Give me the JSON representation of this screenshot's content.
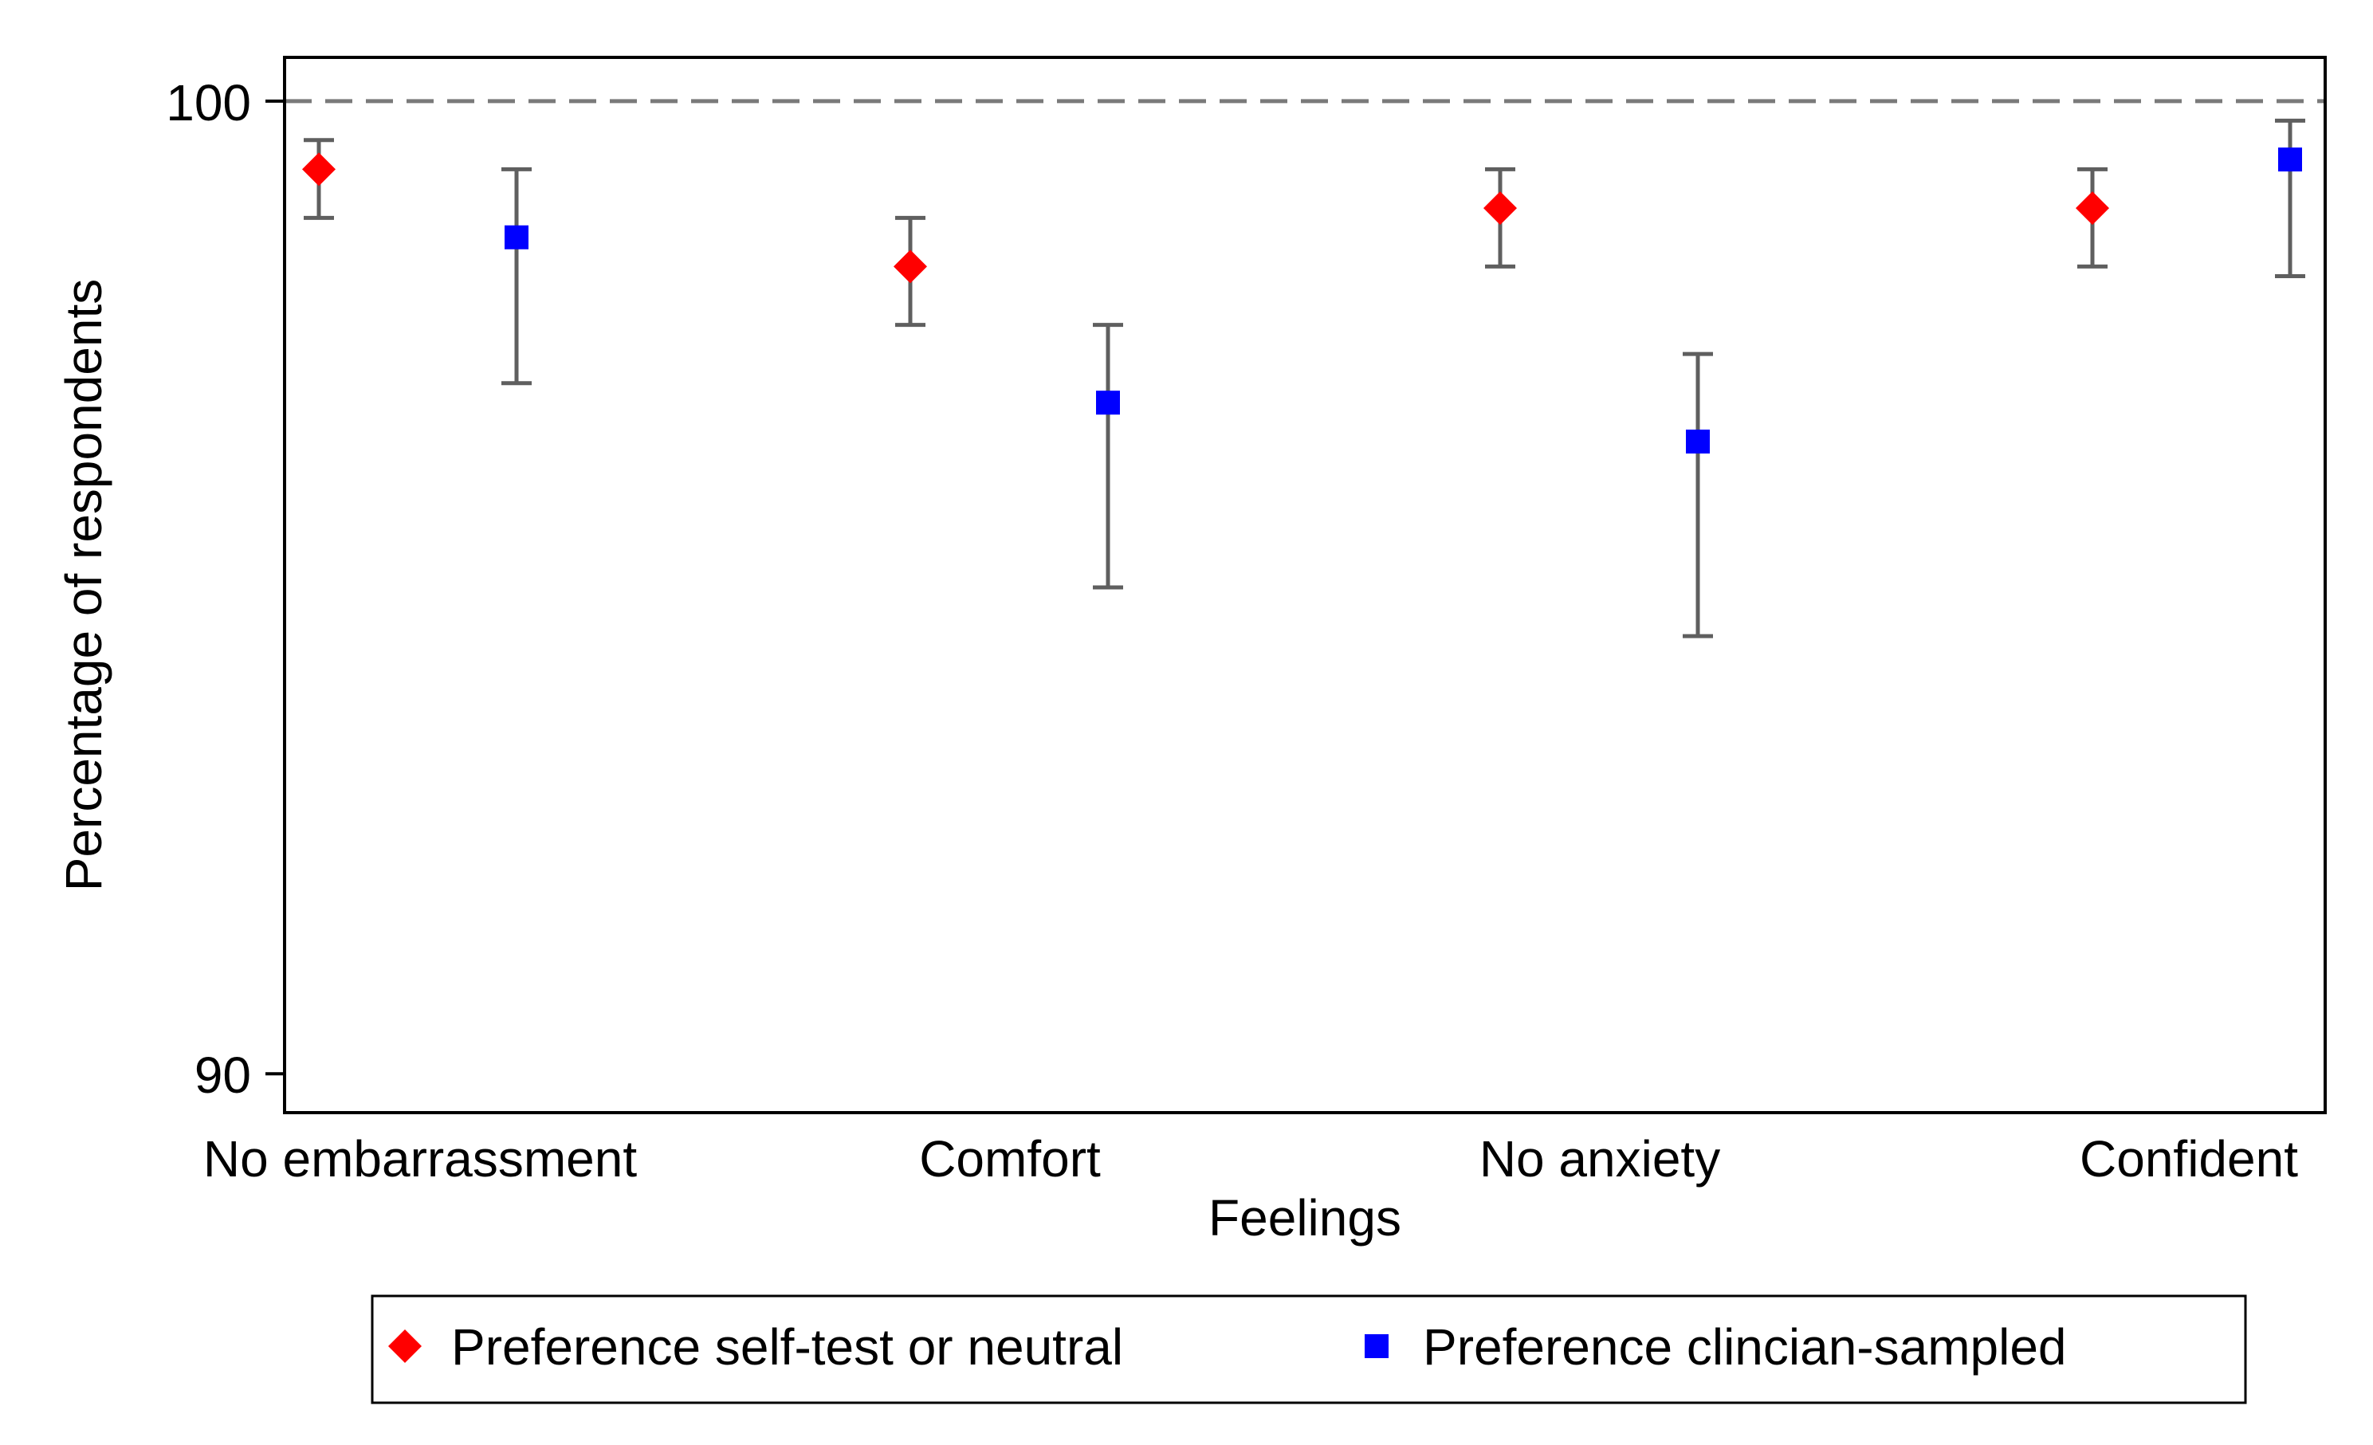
{
  "chart_data": {
    "type": "scatter",
    "title": "",
    "xlabel": "Feelings",
    "ylabel": "Percentage of respondents",
    "ylim": [
      89.6,
      100.45
    ],
    "yticks": [
      90,
      100
    ],
    "reference_line": {
      "y": 100,
      "style": "dashed"
    },
    "categories": [
      "No embarrassment",
      "Comfort",
      "No anxiety",
      "Confident"
    ],
    "series": [
      {
        "name": "Preference self-test or neutral",
        "marker": "diamond",
        "color": "#ff0000",
        "values": [
          99.3,
          98.3,
          98.9,
          98.9
        ],
        "ci_lower": [
          98.8,
          97.7,
          98.3,
          98.3
        ],
        "ci_upper": [
          99.6,
          98.8,
          99.3,
          99.3
        ]
      },
      {
        "name": "Preference clincian-sampled",
        "marker": "square",
        "color": "#0000ff",
        "values": [
          98.6,
          96.9,
          96.5,
          99.4
        ],
        "ci_lower": [
          97.1,
          95.0,
          94.5,
          98.2
        ],
        "ci_upper": [
          99.3,
          97.7,
          97.4,
          99.8
        ]
      }
    ],
    "legend_position": "bottom",
    "grid": false
  }
}
